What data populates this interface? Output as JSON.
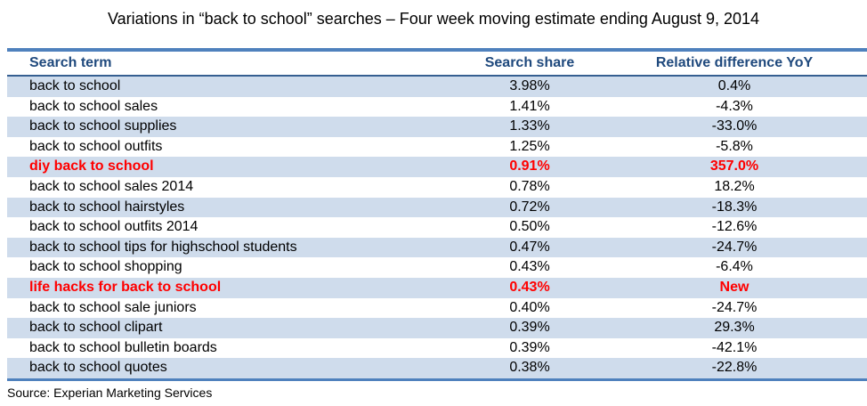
{
  "title": "Variations in “back to school” searches – Four week moving estimate ending August 9, 2014",
  "source": "Source: Experian Marketing Services",
  "colors": {
    "border_blue": "#4F81BD",
    "header_underline_blue": "#365F91",
    "stripe_blue": "#CFDCEC",
    "header_text_blue": "#1F497D",
    "highlight_red": "#FF0000",
    "body_text": "#000000"
  },
  "chart_data": {
    "type": "table",
    "title": "Variations in “back to school” searches – Four week moving estimate ending August 9, 2014",
    "columns": [
      "Search term",
      "Search share",
      "Relative difference YoY"
    ],
    "rows": [
      {
        "term": "back to school",
        "share": "3.98%",
        "yoy": "0.4%",
        "highlight": false
      },
      {
        "term": "back to school sales",
        "share": "1.41%",
        "yoy": "-4.3%",
        "highlight": false
      },
      {
        "term": "back to school supplies",
        "share": "1.33%",
        "yoy": "-33.0%",
        "highlight": false
      },
      {
        "term": "back to school outfits",
        "share": "1.25%",
        "yoy": "-5.8%",
        "highlight": false
      },
      {
        "term": "diy back to school",
        "share": "0.91%",
        "yoy": "357.0%",
        "highlight": true
      },
      {
        "term": "back to school sales 2014",
        "share": "0.78%",
        "yoy": "18.2%",
        "highlight": false
      },
      {
        "term": "back to school hairstyles",
        "share": "0.72%",
        "yoy": "-18.3%",
        "highlight": false
      },
      {
        "term": "back to school outfits 2014",
        "share": "0.50%",
        "yoy": "-12.6%",
        "highlight": false
      },
      {
        "term": "back to school tips for highschool students",
        "share": "0.47%",
        "yoy": "-24.7%",
        "highlight": false
      },
      {
        "term": "back to school shopping",
        "share": "0.43%",
        "yoy": "-6.4%",
        "highlight": false
      },
      {
        "term": "life hacks for back to school",
        "share": "0.43%",
        "yoy": "New",
        "highlight": true
      },
      {
        "term": "back to school sale juniors",
        "share": "0.40%",
        "yoy": "-24.7%",
        "highlight": false
      },
      {
        "term": "back to school clipart",
        "share": "0.39%",
        "yoy": "29.3%",
        "highlight": false
      },
      {
        "term": "back to school bulletin boards",
        "share": "0.39%",
        "yoy": "-42.1%",
        "highlight": false
      },
      {
        "term": "back to school quotes",
        "share": "0.38%",
        "yoy": "-22.8%",
        "highlight": false
      }
    ],
    "legend": "none",
    "grid": "horizontal-stripes"
  }
}
